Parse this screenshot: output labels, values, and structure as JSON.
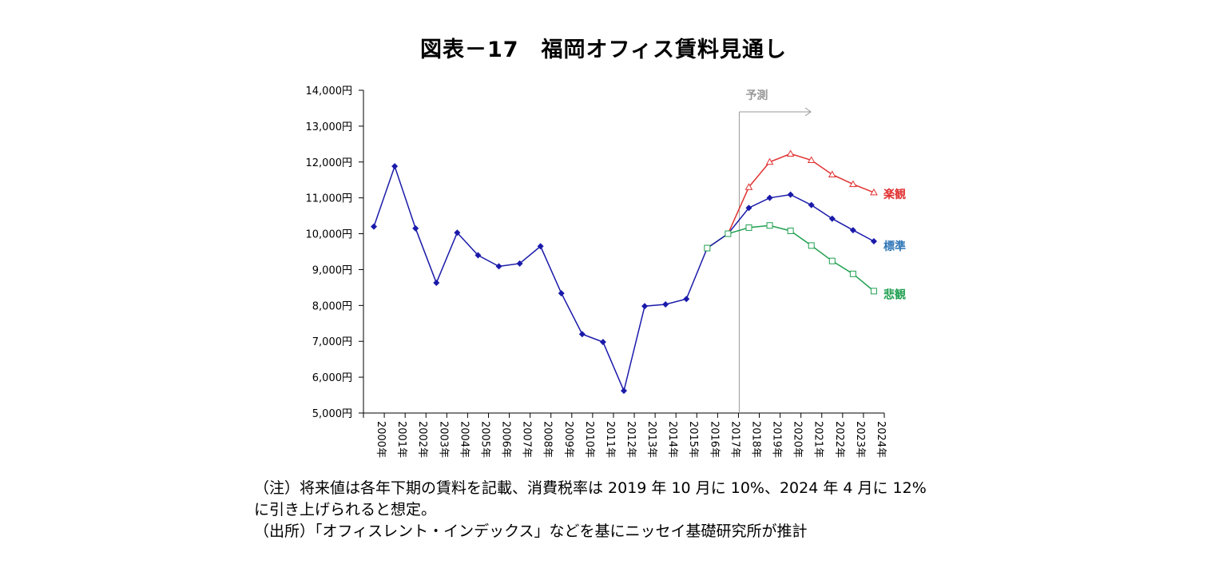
{
  "chart_data": {
    "type": "line",
    "title": "図表－17　福岡オフィス賃料見通し",
    "categories": [
      "2000年",
      "2001年",
      "2002年",
      "2003年",
      "2004年",
      "2005年",
      "2006年",
      "2007年",
      "2008年",
      "2009年",
      "2010年",
      "2011年",
      "2012年",
      "2013年",
      "2014年",
      "2015年",
      "2016年",
      "2017年",
      "2018年",
      "2019年",
      "2020年",
      "2021年",
      "2022年",
      "2023年",
      "2024年"
    ],
    "y_ticks": [
      "5,000円",
      "6,000円",
      "7,000円",
      "8,000円",
      "9,000円",
      "10,000円",
      "11,000円",
      "12,000円",
      "13,000円",
      "14,000円"
    ],
    "ylim": [
      5000,
      14000
    ],
    "grid": false,
    "forecast_label": "予測",
    "forecast_start": "2017年",
    "series": [
      {
        "name": "標準",
        "color": "#1a1aaa",
        "label_color": "#2e75b6",
        "marker": "diamond",
        "values": [
          10200,
          11880,
          10150,
          8630,
          10030,
          9400,
          9090,
          9170,
          9650,
          8340,
          7200,
          6980,
          5620,
          7980,
          8030,
          8180,
          9600,
          10000,
          10720,
          11000,
          11090,
          10800,
          10420,
          10100,
          9790
        ]
      },
      {
        "name": "楽観",
        "color": "#e03030",
        "label_color": "#e03030",
        "marker": "triangle",
        "values": [
          null,
          null,
          null,
          null,
          null,
          null,
          null,
          null,
          null,
          null,
          null,
          null,
          null,
          null,
          null,
          null,
          9600,
          10000,
          11300,
          12000,
          12230,
          12050,
          11650,
          11380,
          11150
        ]
      },
      {
        "name": "悲観",
        "color": "#20a050",
        "label_color": "#20a050",
        "marker": "square",
        "values": [
          null,
          null,
          null,
          null,
          null,
          null,
          null,
          null,
          null,
          null,
          null,
          null,
          null,
          null,
          null,
          null,
          9600,
          10000,
          10170,
          10230,
          10080,
          9670,
          9240,
          8880,
          8400
        ]
      }
    ]
  },
  "notes": [
    "（注）将来値は各年下期の賃料を記載、消費税率は 2019 年 10 月に 10%、2024 年 4 月に 12%",
    "に引き上げられると想定。",
    "（出所）「オフィスレント・インデックス」などを基にニッセイ基礎研究所が推計"
  ]
}
